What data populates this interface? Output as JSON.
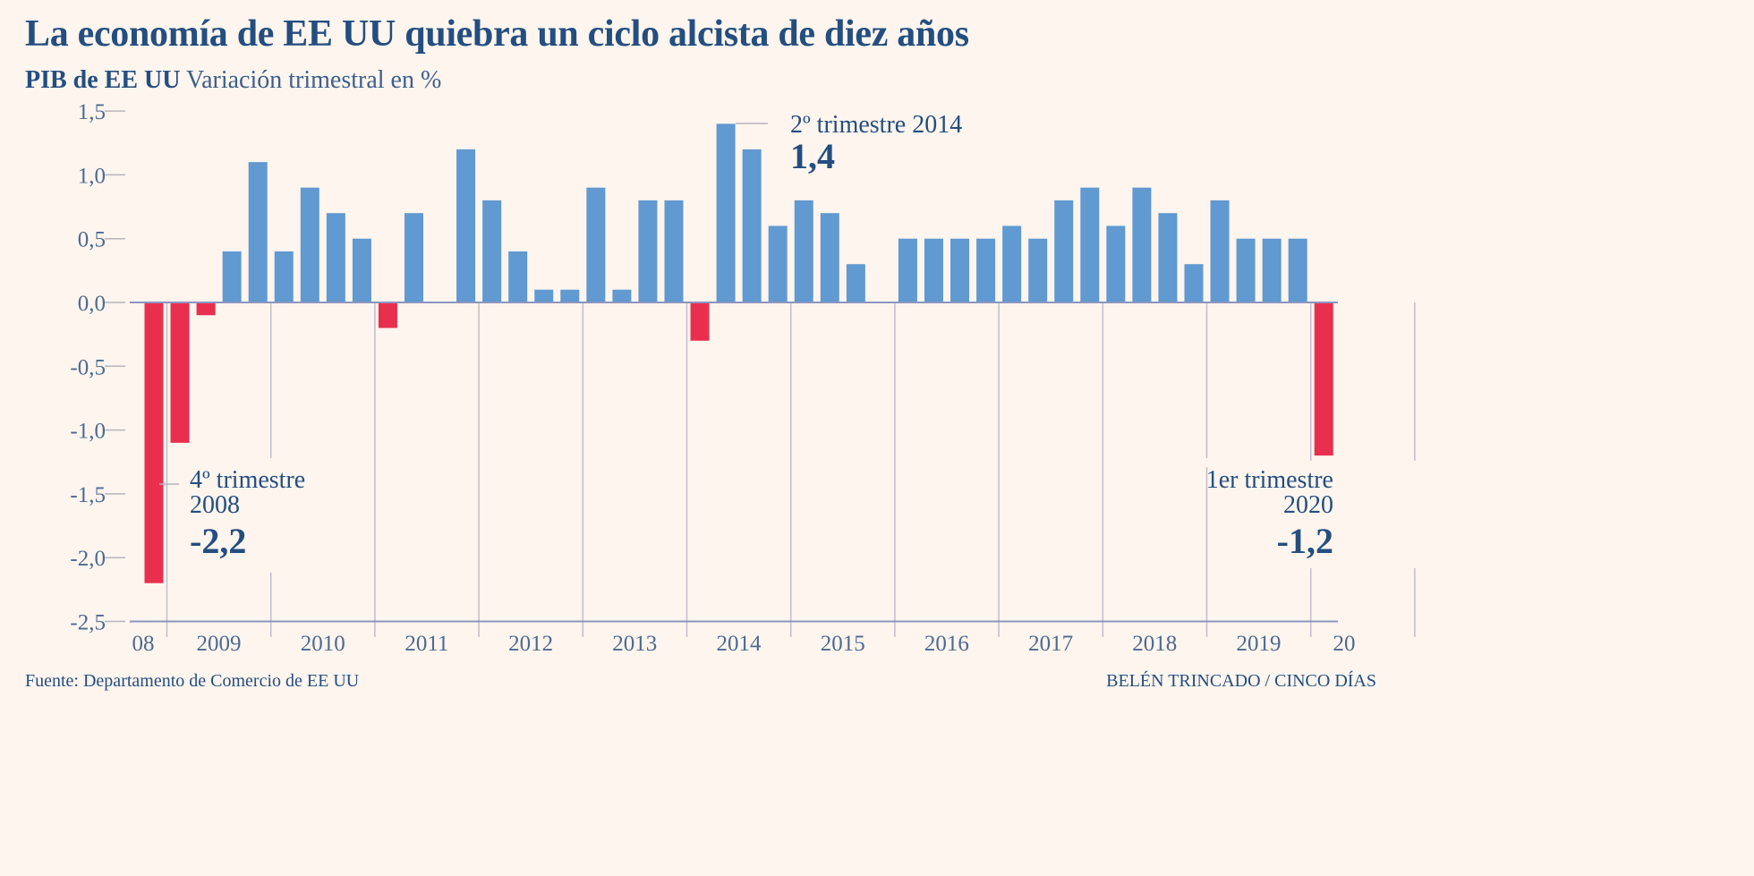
{
  "title": "La economía de EE UU quiebra un ciclo alcista de diez años",
  "subtitle_bold": "PIB de EE UU",
  "subtitle_rest": "Variación trimestral en %",
  "source": "Fuente: Departamento de Comercio de EE UU",
  "credit": "BELÉN TRINCADO / CINCO DÍAS",
  "colors": {
    "positive": "#6199d1",
    "negative": "#e8304e",
    "text": "#244e80",
    "background": "#fdf5ee"
  },
  "chart_data": {
    "type": "bar",
    "title": "La economía de EE UU quiebra un ciclo alcista de diez años",
    "subtitle": "PIB de EE UU Variación trimestral en %",
    "xlabel": "",
    "ylabel": "",
    "ylim": [
      -2.5,
      1.5
    ],
    "yticks": [
      "1,5",
      "1,0",
      "0,5",
      "0,0",
      "-0,5",
      "-1,0",
      "-1,5",
      "-2,0",
      "-2,5"
    ],
    "ytick_values": [
      1.5,
      1.0,
      0.5,
      0.0,
      -0.5,
      -1.0,
      -1.5,
      -2.0,
      -2.5
    ],
    "year_labels": [
      "08",
      "2009",
      "2010",
      "2011",
      "2012",
      "2013",
      "2014",
      "2015",
      "2016",
      "2017",
      "2018",
      "2019",
      "20"
    ],
    "categories": [
      "2008 T4",
      "2009 T1",
      "2009 T2",
      "2009 T3",
      "2009 T4",
      "2010 T1",
      "2010 T2",
      "2010 T3",
      "2010 T4",
      "2011 T1",
      "2011 T2",
      "2011 T3",
      "2011 T4",
      "2012 T1",
      "2012 T2",
      "2012 T3",
      "2012 T4",
      "2013 T1",
      "2013 T2",
      "2013 T3",
      "2013 T4",
      "2014 T1",
      "2014 T2",
      "2014 T3",
      "2014 T4",
      "2015 T1",
      "2015 T2",
      "2015 T3",
      "2015 T4",
      "2016 T1",
      "2016 T2",
      "2016 T3",
      "2016 T4",
      "2017 T1",
      "2017 T2",
      "2017 T3",
      "2017 T4",
      "2018 T1",
      "2018 T2",
      "2018 T3",
      "2018 T4",
      "2019 T1",
      "2019 T2",
      "2019 T3",
      "2019 T4",
      "2020 T1"
    ],
    "values": [
      -2.2,
      -1.1,
      -0.1,
      0.4,
      1.1,
      0.4,
      0.9,
      0.7,
      0.5,
      -0.2,
      0.7,
      0.0,
      1.2,
      0.8,
      0.4,
      0.1,
      0.1,
      0.9,
      0.1,
      0.8,
      0.8,
      -0.3,
      1.4,
      1.2,
      0.6,
      0.8,
      0.7,
      0.3,
      0.0,
      0.5,
      0.5,
      0.5,
      0.5,
      0.6,
      0.5,
      0.8,
      0.9,
      0.6,
      0.9,
      0.7,
      0.3,
      0.8,
      0.5,
      0.5,
      0.5,
      -1.2
    ],
    "grid": false,
    "annotations": [
      {
        "lines": [
          "4º trimestre",
          "2008"
        ],
        "value": "-2,2"
      },
      {
        "lines": [
          "2º trimestre 2014"
        ],
        "value": "1,4"
      },
      {
        "lines": [
          "1er trimestre",
          "2020"
        ],
        "value": "-1,2"
      }
    ]
  }
}
